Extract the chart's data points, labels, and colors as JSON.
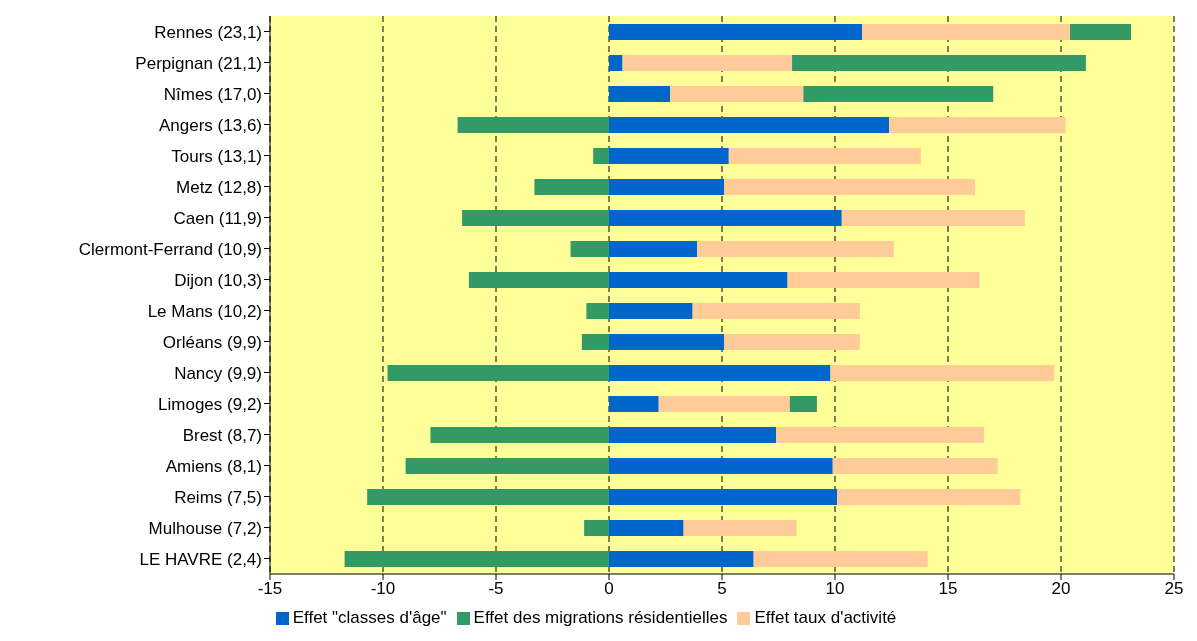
{
  "chart_data": {
    "type": "bar",
    "orientation": "horizontal",
    "stacked": true,
    "categories": [
      "Rennes  (23,1)",
      "Perpignan  (21,1)",
      "Nîmes  (17,0)",
      "Angers  (13,6)",
      "Tours  (13,1)",
      "Metz  (12,8)",
      "Caen  (11,9)",
      "Clermont-Ferrand  (10,9)",
      "Dijon  (10,3)",
      "Le Mans  (10,2)",
      "Orléans  (9,9)",
      "Nancy  (9,9)",
      "Limoges  (9,2)",
      "Brest  (8,7)",
      "Amiens  (8,1)",
      "Reims  (7,5)",
      "Mulhouse  (7,2)",
      "LE HAVRE  (2,4)"
    ],
    "series": [
      {
        "name": "Effet \"classes d'âge\"",
        "color": "#0066cc",
        "values": [
          11.2,
          0.6,
          2.7,
          12.4,
          5.3,
          5.1,
          10.3,
          3.9,
          7.9,
          3.7,
          5.1,
          9.8,
          2.2,
          7.4,
          9.9,
          10.1,
          3.3,
          6.4
        ]
      },
      {
        "name": "Effet taux d'activité",
        "color": "#ffcc99",
        "values": [
          9.2,
          7.5,
          5.9,
          7.8,
          8.5,
          11.1,
          8.1,
          8.7,
          8.5,
          7.4,
          6.0,
          9.9,
          5.8,
          9.2,
          7.3,
          8.1,
          5.0,
          7.7
        ]
      },
      {
        "name": "Effet des migrations résidentielles",
        "color": "#339966",
        "values": [
          2.7,
          13.0,
          8.4,
          -6.7,
          -0.7,
          -3.3,
          -6.5,
          -1.7,
          -6.2,
          -1.0,
          -1.2,
          -9.8,
          1.2,
          -7.9,
          -9.0,
          -10.7,
          -1.1,
          -11.7
        ]
      }
    ],
    "xlim": [
      -15,
      25
    ],
    "xticks": [
      -15,
      -10,
      -5,
      0,
      5,
      10,
      15,
      20,
      25
    ],
    "grid": "x",
    "legend": "bottom"
  }
}
